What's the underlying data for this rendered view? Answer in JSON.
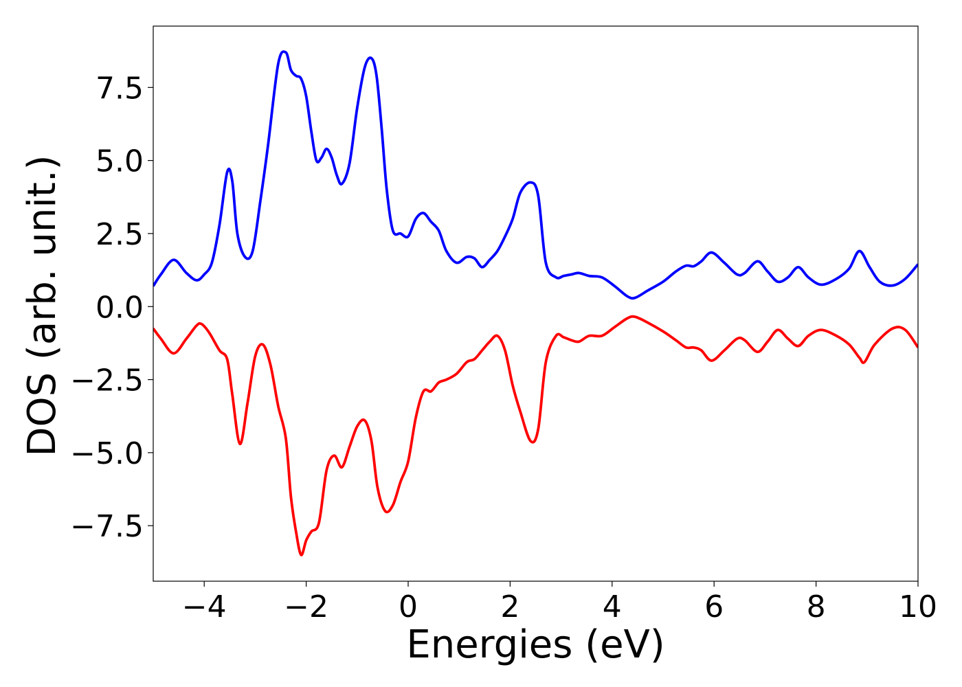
{
  "chart_data": {
    "type": "line",
    "title": "",
    "xlabel": "Energies (eV)",
    "ylabel": "DOS (arb. unit.)",
    "xlim": [
      -5,
      10
    ],
    "ylim": [
      -9.4,
      9.6
    ],
    "xticks": [
      -4,
      -2,
      0,
      2,
      4,
      6,
      8,
      10
    ],
    "xtick_labels": [
      "−4",
      "−2",
      "0",
      "2",
      "4",
      "6",
      "8",
      "10"
    ],
    "yticks": [
      -7.5,
      -5.0,
      -2.5,
      0.0,
      2.5,
      5.0,
      7.5
    ],
    "ytick_labels": [
      "−7.5",
      "−5.0",
      "−2.5",
      "0.0",
      "2.5",
      "5.0",
      "7.5"
    ],
    "grid": false,
    "legend": "none",
    "series": [
      {
        "color": "#0000ff",
        "x": [
          -5.0,
          -4.85,
          -4.6,
          -4.35,
          -4.15,
          -4.0,
          -3.85,
          -3.7,
          -3.55,
          -3.45,
          -3.35,
          -3.2,
          -3.05,
          -2.9,
          -2.75,
          -2.55,
          -2.4,
          -2.3,
          -2.2,
          -2.1,
          -2.0,
          -1.9,
          -1.8,
          -1.7,
          -1.6,
          -1.5,
          -1.4,
          -1.3,
          -1.15,
          -1.0,
          -0.85,
          -0.72,
          -0.62,
          -0.52,
          -0.42,
          -0.3,
          -0.15,
          0.0,
          0.15,
          0.3,
          0.45,
          0.6,
          0.75,
          0.95,
          1.15,
          1.3,
          1.45,
          1.6,
          1.75,
          1.9,
          2.05,
          2.2,
          2.4,
          2.55,
          2.7,
          2.9,
          3.05,
          3.2,
          3.35,
          3.55,
          3.8,
          4.05,
          4.3,
          4.45,
          4.7,
          5.0,
          5.25,
          5.45,
          5.6,
          5.75,
          5.95,
          6.2,
          6.45,
          6.6,
          6.85,
          7.05,
          7.25,
          7.45,
          7.65,
          7.85,
          8.1,
          8.4,
          8.65,
          8.85,
          9.05,
          9.25,
          9.5,
          9.75,
          10.0
        ],
        "y": [
          0.7,
          1.1,
          1.6,
          1.15,
          0.9,
          1.1,
          1.5,
          2.8,
          4.6,
          4.3,
          2.5,
          1.7,
          1.9,
          3.6,
          5.5,
          8.3,
          8.7,
          8.1,
          7.9,
          7.8,
          7.2,
          6.0,
          5.0,
          5.1,
          5.4,
          5.1,
          4.5,
          4.2,
          4.9,
          6.8,
          8.2,
          8.5,
          7.9,
          6.1,
          4.0,
          2.6,
          2.5,
          2.4,
          3.0,
          3.2,
          2.9,
          2.6,
          1.9,
          1.5,
          1.7,
          1.65,
          1.35,
          1.6,
          1.9,
          2.4,
          3.0,
          3.9,
          4.25,
          3.8,
          1.5,
          1.0,
          1.05,
          1.1,
          1.15,
          1.05,
          1.0,
          0.7,
          0.35,
          0.3,
          0.55,
          0.85,
          1.2,
          1.4,
          1.38,
          1.55,
          1.85,
          1.5,
          1.1,
          1.15,
          1.55,
          1.2,
          0.85,
          1.0,
          1.35,
          1.0,
          0.75,
          0.95,
          1.3,
          1.9,
          1.35,
          0.85,
          0.72,
          0.95,
          1.45
        ]
      },
      {
        "color": "#ff0000",
        "x": [
          -5.0,
          -4.85,
          -4.6,
          -4.35,
          -4.15,
          -4.05,
          -3.9,
          -3.7,
          -3.55,
          -3.45,
          -3.3,
          -3.15,
          -3.0,
          -2.85,
          -2.7,
          -2.55,
          -2.4,
          -2.3,
          -2.2,
          -2.1,
          -2.0,
          -1.9,
          -1.75,
          -1.6,
          -1.45,
          -1.3,
          -1.15,
          -1.0,
          -0.85,
          -0.72,
          -0.6,
          -0.45,
          -0.3,
          -0.15,
          0.0,
          0.15,
          0.3,
          0.45,
          0.6,
          0.75,
          0.95,
          1.15,
          1.3,
          1.45,
          1.6,
          1.75,
          1.9,
          2.05,
          2.2,
          2.4,
          2.55,
          2.7,
          2.9,
          3.05,
          3.2,
          3.35,
          3.55,
          3.8,
          4.05,
          4.3,
          4.45,
          4.7,
          5.0,
          5.25,
          5.45,
          5.6,
          5.75,
          5.95,
          6.2,
          6.45,
          6.6,
          6.85,
          7.05,
          7.25,
          7.45,
          7.65,
          7.85,
          8.1,
          8.4,
          8.65,
          8.85,
          8.95,
          9.15,
          9.5,
          9.75,
          10.0
        ],
        "y": [
          -0.75,
          -1.1,
          -1.6,
          -1.1,
          -0.65,
          -0.6,
          -0.9,
          -1.5,
          -1.8,
          -3.0,
          -4.7,
          -3.3,
          -1.7,
          -1.3,
          -2.0,
          -3.4,
          -4.5,
          -6.5,
          -7.7,
          -8.5,
          -8.0,
          -7.7,
          -7.4,
          -5.6,
          -5.1,
          -5.5,
          -4.8,
          -4.1,
          -3.9,
          -4.6,
          -6.2,
          -7.0,
          -6.8,
          -6.0,
          -5.3,
          -3.8,
          -2.9,
          -2.9,
          -2.6,
          -2.5,
          -2.3,
          -1.9,
          -1.8,
          -1.5,
          -1.2,
          -1.0,
          -1.5,
          -2.7,
          -3.6,
          -4.6,
          -4.2,
          -1.9,
          -1.0,
          -1.05,
          -1.15,
          -1.2,
          -1.0,
          -1.0,
          -0.7,
          -0.4,
          -0.35,
          -0.55,
          -0.85,
          -1.15,
          -1.4,
          -1.4,
          -1.5,
          -1.85,
          -1.5,
          -1.1,
          -1.15,
          -1.55,
          -1.2,
          -0.8,
          -1.1,
          -1.35,
          -1.0,
          -0.8,
          -1.0,
          -1.3,
          -1.75,
          -1.9,
          -1.3,
          -0.75,
          -0.8,
          -1.4
        ]
      }
    ]
  }
}
